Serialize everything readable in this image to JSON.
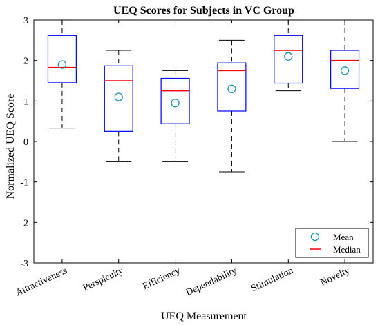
{
  "chart_data": {
    "type": "boxplot",
    "title": "UEQ Scores for Subjects in VC Group",
    "xlabel": "UEQ Measurement",
    "ylabel": "Normalized UEQ Score",
    "ylim": [
      -3,
      3
    ],
    "yticks": [
      -3,
      -2,
      -1,
      0,
      1,
      2,
      3
    ],
    "categories": [
      "Attractiveness",
      "Perspicuity",
      "Efficiency",
      "Dependability",
      "Stimulation",
      "Novelty"
    ],
    "series": [
      {
        "category": "Attractiveness",
        "whisker_low": 0.33,
        "q1": 1.45,
        "median": 1.83,
        "q3": 2.62,
        "whisker_high": 3.0,
        "mean": 1.9
      },
      {
        "category": "Perspicuity",
        "whisker_low": -0.5,
        "q1": 0.25,
        "median": 1.5,
        "q3": 1.87,
        "whisker_high": 2.25,
        "mean": 1.1
      },
      {
        "category": "Efficiency",
        "whisker_low": -0.5,
        "q1": 0.44,
        "median": 1.25,
        "q3": 1.56,
        "whisker_high": 1.75,
        "mean": 0.95
      },
      {
        "category": "Dependability",
        "whisker_low": -0.75,
        "q1": 0.75,
        "median": 1.75,
        "q3": 1.94,
        "whisker_high": 2.5,
        "mean": 1.3
      },
      {
        "category": "Stimulation",
        "whisker_low": 1.25,
        "q1": 1.44,
        "median": 2.25,
        "q3": 2.62,
        "whisker_high": 3.0,
        "mean": 2.1
      },
      {
        "category": "Novelty",
        "whisker_low": 0.0,
        "q1": 1.31,
        "median": 2.0,
        "q3": 2.25,
        "whisker_high": 3.0,
        "mean": 1.75
      }
    ],
    "legend": {
      "position": "bottom-right",
      "entries": [
        {
          "label": "Mean",
          "marker": "circle",
          "color": "#1f8fb3"
        },
        {
          "label": "Median",
          "marker": "line",
          "color": "#ff0000"
        }
      ]
    },
    "colors": {
      "box": "#0000ff",
      "median": "#ff0000",
      "mean": "#1f8fb3",
      "whisker": "#000000"
    },
    "grid": false
  }
}
